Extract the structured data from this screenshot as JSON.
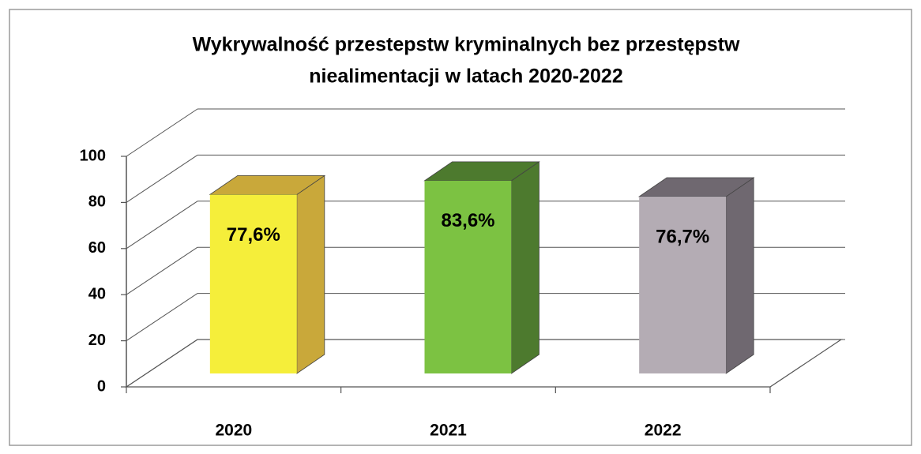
{
  "chart_data": {
    "type": "bar3d",
    "title": [
      "Wykrywalność przestepstw kryminalnych bez przestępstw",
      "niealimentacji w latach 2020-2022"
    ],
    "categories": [
      "2020",
      "2021",
      "2022"
    ],
    "values": [
      77.6,
      83.6,
      76.7
    ],
    "value_labels": [
      "77,6%",
      "83,6%",
      "76,7%"
    ],
    "colors": [
      "#f5ee3a",
      "#7cc242",
      "#b4acb4"
    ],
    "side_colors": [
      "#c9a83a",
      "#4d7a2e",
      "#6f6870"
    ],
    "ylim": [
      0,
      100
    ],
    "yticks": [
      0,
      20,
      40,
      60,
      80,
      100
    ],
    "grid": true
  }
}
